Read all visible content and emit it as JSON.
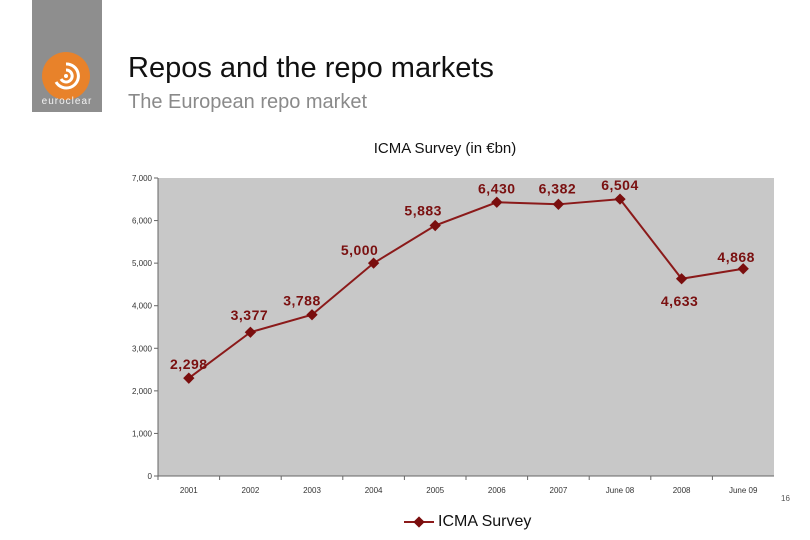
{
  "slide": {
    "logo_text": "euroclear",
    "title": "Repos and the repo markets",
    "subtitle": "The European repo market",
    "page_number": "16"
  },
  "chart_data": {
    "type": "line",
    "title": "ICMA Survey (in €bn)",
    "categories": [
      "2001",
      "2002",
      "2003",
      "2004",
      "2005",
      "2006",
      "2007",
      "June 08",
      "2008",
      "June 09"
    ],
    "y_ticks": [
      "0",
      "1,000",
      "2,000",
      "3,000",
      "4,000",
      "5,000",
      "6,000",
      "7,000"
    ],
    "ylim": [
      0,
      7000
    ],
    "grid": false,
    "legend_position": "bottom",
    "series": [
      {
        "name": "ICMA Survey",
        "values": [
          2298,
          3377,
          3788,
          5000,
          5883,
          6430,
          6382,
          6504,
          4633,
          4868
        ],
        "labels": [
          "2,298",
          "3,377",
          "3,788",
          "5,000",
          "5,883",
          "6,430",
          "6,382",
          "6,504",
          "4,633",
          "4,868"
        ]
      }
    ],
    "colors": {
      "line": "#8b1a1a",
      "marker": "#7a0e0e",
      "plot_background": "#c8c8c8",
      "label": "#7a1010"
    }
  }
}
